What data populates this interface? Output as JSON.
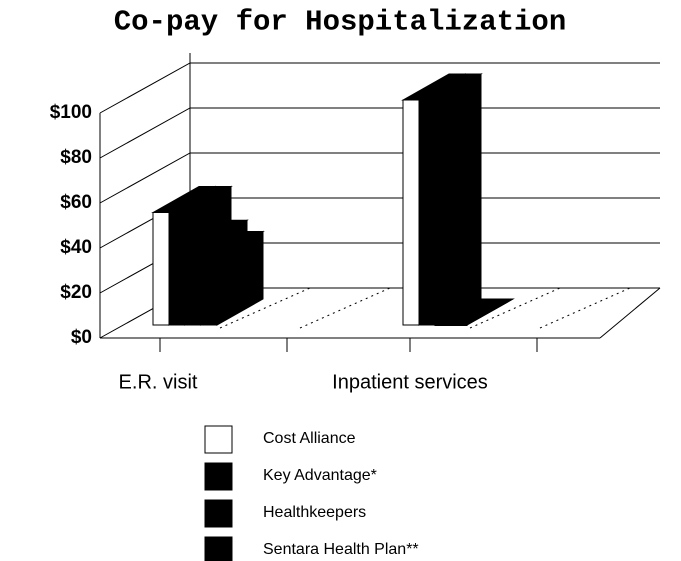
{
  "chart_data": {
    "type": "bar3d",
    "title": "Co-pay for Hospitalization",
    "categories": [
      "E.R. visit",
      "Inpatient services"
    ],
    "series": [
      {
        "name": "Cost Alliance",
        "color": "#ffffff",
        "values": [
          50,
          100
        ]
      },
      {
        "name": "Key Advantage*",
        "color": "#000000",
        "values": [
          50,
          100
        ]
      },
      {
        "name": "Healthkeepers",
        "color": "#000000",
        "values": [
          35,
          0
        ]
      },
      {
        "name": "Sentara Health Plan**",
        "color": "#000000",
        "values": [
          30,
          0
        ]
      }
    ],
    "ylim": [
      0,
      100
    ],
    "yticks": [
      {
        "value": 0,
        "label": "$0"
      },
      {
        "value": 20,
        "label": "$20"
      },
      {
        "value": 40,
        "label": "$40"
      },
      {
        "value": 60,
        "label": "$60"
      },
      {
        "value": 80,
        "label": "$80"
      },
      {
        "value": 100,
        "label": "$100"
      }
    ],
    "grid": true,
    "legend": "bottom"
  }
}
